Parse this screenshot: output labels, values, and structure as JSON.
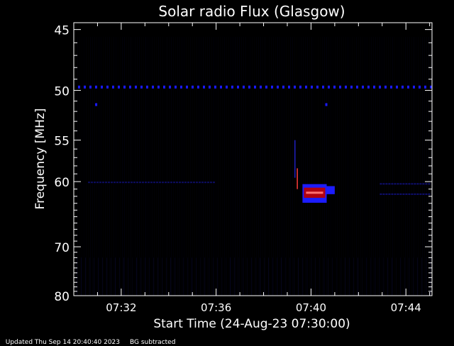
{
  "chart_data": {
    "type": "heatmap",
    "title": "Solar radio Flux (Glasgow)",
    "xlabel": "Start Time (24-Aug-23 07:30:00)",
    "ylabel": "Frequency [MHz]",
    "x_ticks": [
      "07:32",
      "07:36",
      "07:40",
      "07:44"
    ],
    "x_tick_minutes": [
      2,
      6,
      10,
      14
    ],
    "xlim_minutes": [
      0,
      15.1
    ],
    "y_ticks": [
      45,
      50,
      55,
      60,
      70,
      80
    ],
    "ylim": [
      44.5,
      80
    ],
    "y_scale": "reciprocal",
    "grid": false,
    "colormap": "blue-red on black",
    "features": {
      "constant_band_mhz": 49.7,
      "burst": {
        "start_minute": 9.7,
        "end_minute": 10.6,
        "center_mhz": 61.5,
        "width_mhz": 1.4
      }
    }
  },
  "footer": {
    "updated": "Updated Thu Sep 14 20:40:40 2023",
    "note": "BG subtracted"
  }
}
